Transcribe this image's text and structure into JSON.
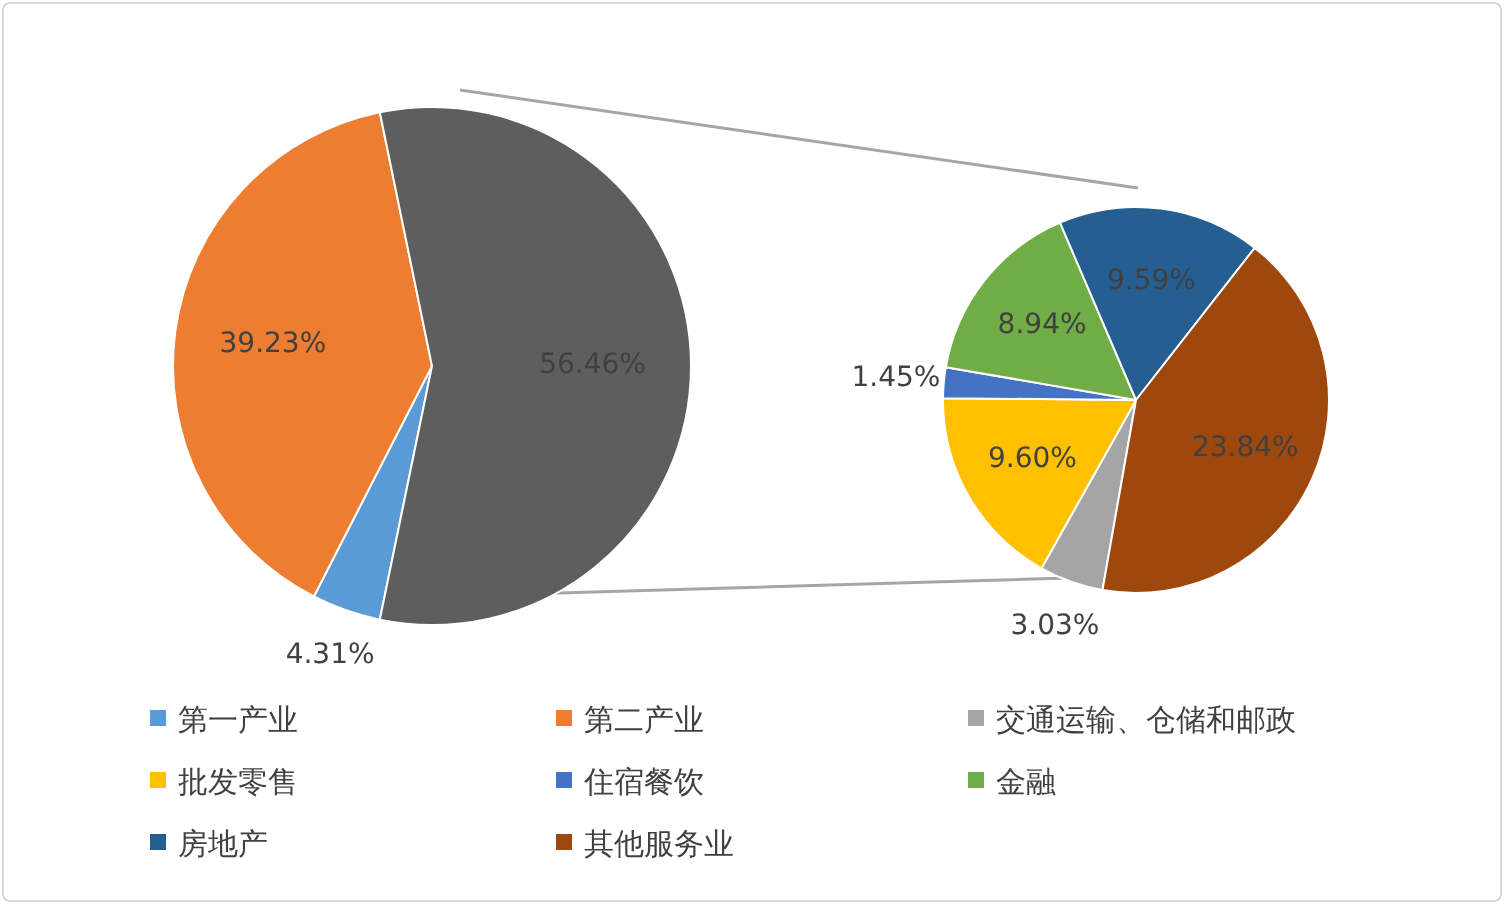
{
  "chart_data": [
    {
      "type": "pie",
      "categories": [
        "第一产业",
        "第二产业",
        null
      ],
      "values": [
        4.31,
        39.23,
        56.46
      ],
      "colors": [
        "#5b9bd5",
        "#ed7d31",
        "#5e5e5e"
      ],
      "value_labels": [
        "4.31%",
        "39.23%",
        "56.46%"
      ],
      "legend": "bottom"
    },
    {
      "type": "pie",
      "categories": [
        "交通运输、仓储和邮政",
        "批发零售",
        "住宿餐饮",
        "金融",
        "房地产",
        "其他服务业"
      ],
      "values": [
        3.03,
        9.6,
        1.45,
        8.94,
        9.59,
        23.84
      ],
      "colors": [
        "#a5a5a5",
        "#ffc000",
        "#4472c4",
        "#70ad47",
        "#255e91",
        "#9e480e"
      ],
      "value_labels": [
        "3.03%",
        "9.60%",
        "1.45%",
        "8.94%",
        "9.59%",
        "23.84%"
      ],
      "legend": "bottom"
    }
  ]
}
